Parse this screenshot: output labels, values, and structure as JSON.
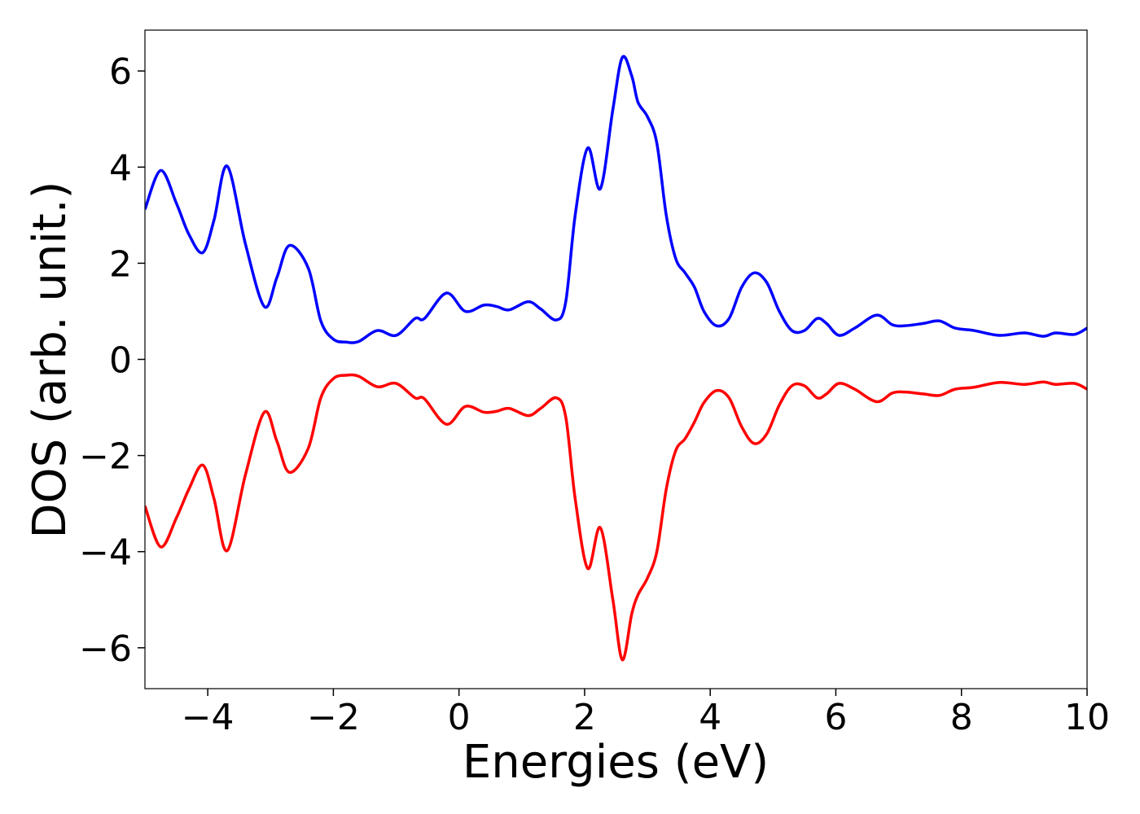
{
  "chart_data": {
    "type": "line",
    "xlabel": "Energies (eV)",
    "ylabel": "DOS (arb. unit.)",
    "x": [
      -5,
      -4.75,
      -4.5,
      -4.3,
      -4.08,
      -3.9,
      -3.69,
      -3.4,
      -3.1,
      -2.9,
      -2.7,
      -2.4,
      -2.2,
      -2.0,
      -1.8,
      -1.6,
      -1.3,
      -1.0,
      -0.7,
      -0.55,
      -0.2,
      0.1,
      0.4,
      0.6,
      0.8,
      1.1,
      1.3,
      1.55,
      1.7,
      1.85,
      2.05,
      2.25,
      2.45,
      2.6,
      2.75,
      2.85,
      3.0,
      3.15,
      3.3,
      3.45,
      3.6,
      3.75,
      3.9,
      4.1,
      4.3,
      4.5,
      4.7,
      4.9,
      5.1,
      5.3,
      5.5,
      5.7,
      5.85,
      6.05,
      6.3,
      6.65,
      6.9,
      7.1,
      7.4,
      7.65,
      7.9,
      8.2,
      8.6,
      9.0,
      9.3,
      9.5,
      9.8,
      10
    ],
    "series": [
      {
        "color": "#0000ff",
        "values": [
          3.12,
          3.93,
          3.25,
          2.6,
          2.22,
          2.9,
          4.02,
          2.4,
          1.1,
          1.7,
          2.37,
          1.9,
          0.8,
          0.42,
          0.36,
          0.37,
          0.6,
          0.5,
          0.85,
          0.85,
          1.38,
          1.0,
          1.13,
          1.1,
          1.03,
          1.2,
          1.05,
          0.82,
          1.2,
          3.0,
          4.4,
          3.55,
          5.2,
          6.28,
          5.9,
          5.35,
          5.05,
          4.5,
          3.0,
          2.1,
          1.8,
          1.5,
          1.0,
          0.7,
          0.85,
          1.5,
          1.8,
          1.6,
          1.0,
          0.6,
          0.6,
          0.85,
          0.75,
          0.5,
          0.65,
          0.92,
          0.72,
          0.7,
          0.75,
          0.8,
          0.65,
          0.6,
          0.5,
          0.55,
          0.48,
          0.55,
          0.52,
          0.65
        ]
      },
      {
        "color": "#ff0000",
        "values": [
          -3.05,
          -3.9,
          -3.3,
          -2.7,
          -2.2,
          -2.9,
          -3.98,
          -2.4,
          -1.1,
          -1.7,
          -2.35,
          -1.85,
          -0.8,
          -0.4,
          -0.33,
          -0.35,
          -0.57,
          -0.5,
          -0.8,
          -0.82,
          -1.35,
          -0.98,
          -1.1,
          -1.08,
          -1.02,
          -1.17,
          -1.02,
          -0.8,
          -1.2,
          -2.9,
          -4.35,
          -3.5,
          -5.0,
          -6.25,
          -5.3,
          -4.9,
          -4.55,
          -4.0,
          -2.7,
          -1.9,
          -1.65,
          -1.3,
          -0.9,
          -0.65,
          -0.8,
          -1.4,
          -1.75,
          -1.55,
          -0.95,
          -0.55,
          -0.55,
          -0.8,
          -0.72,
          -0.5,
          -0.62,
          -0.88,
          -0.7,
          -0.68,
          -0.72,
          -0.75,
          -0.62,
          -0.58,
          -0.48,
          -0.52,
          -0.47,
          -0.52,
          -0.5,
          -0.62
        ]
      }
    ],
    "xlim": [
      -5,
      10
    ],
    "xticks": [
      {
        "value": -4,
        "label": "−4"
      },
      {
        "value": -2,
        "label": "−2"
      },
      0,
      2,
      4,
      6,
      8,
      10
    ],
    "ylim": [
      -6.85,
      6.85
    ],
    "yticks": [
      {
        "value": -6,
        "label": "−6"
      },
      {
        "value": -4,
        "label": "−4"
      },
      {
        "value": -2,
        "label": "−2"
      },
      0,
      2,
      4,
      6
    ],
    "grid": false
  }
}
